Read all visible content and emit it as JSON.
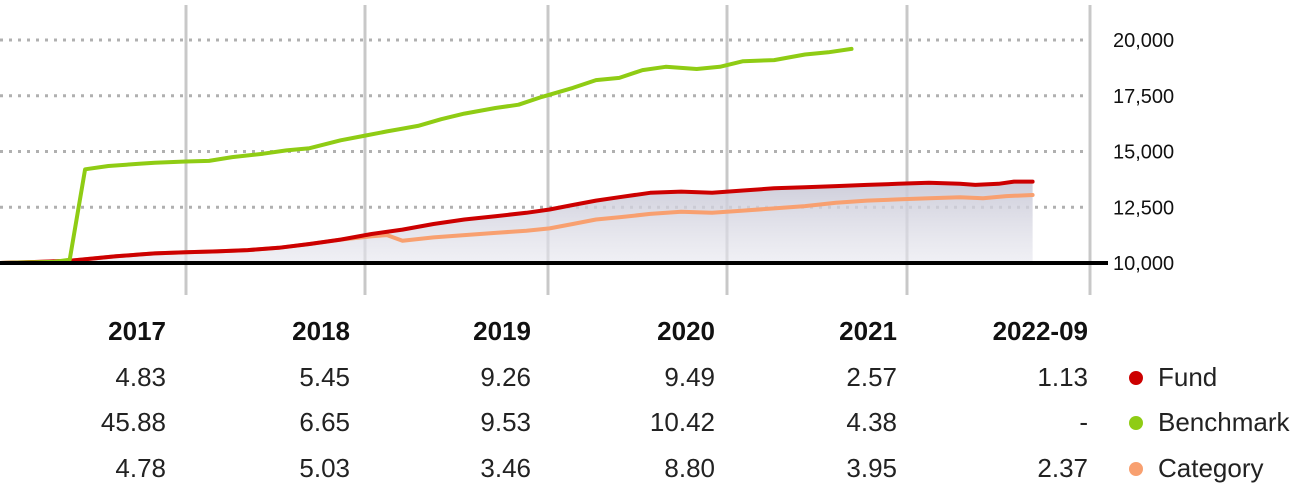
{
  "chart_data": {
    "type": "line",
    "y_ticks": [
      "20,000",
      "17,500",
      "15,000",
      "12,500",
      "10,000"
    ],
    "y_tick_values": [
      20000,
      17500,
      15000,
      12500,
      10000
    ],
    "ylim": [
      8800,
      21500
    ],
    "x_range": [
      2016.0,
      2022.75
    ],
    "year_markers": [
      2016.5,
      2017.5,
      2018.5,
      2019.5,
      2020.5,
      2021.5
    ],
    "grid": "dotted horizontal, solid vertical year separators",
    "series": [
      {
        "name": "Fund",
        "color": "#cc0000",
        "area_fill": true,
        "x": [
          2016.0,
          2016.25,
          2016.45,
          2016.6,
          2016.75,
          2016.9,
          2017.0,
          2017.2,
          2017.4,
          2017.6,
          2017.8,
          2018.0,
          2018.2,
          2018.4,
          2018.6,
          2018.8,
          2019.0,
          2019.2,
          2019.4,
          2019.55,
          2019.7,
          2019.85,
          2020.0,
          2020.2,
          2020.4,
          2020.6,
          2020.8,
          2021.0,
          2021.2,
          2021.4,
          2021.6,
          2021.8,
          2022.0,
          2022.2,
          2022.3,
          2022.45,
          2022.55,
          2022.67
        ],
        "values": [
          10000,
          10050,
          10100,
          10200,
          10300,
          10380,
          10430,
          10480,
          10520,
          10580,
          10680,
          10850,
          11050,
          11300,
          11500,
          11750,
          11950,
          12100,
          12250,
          12400,
          12600,
          12800,
          12950,
          13150,
          13200,
          13150,
          13250,
          13350,
          13400,
          13450,
          13500,
          13550,
          13600,
          13550,
          13500,
          13550,
          13650,
          13650
        ]
      },
      {
        "name": "Benchmark",
        "color": "#8fcc14",
        "area_fill": false,
        "x": [
          2016.0,
          2016.35,
          2016.45,
          2016.55,
          2016.7,
          2016.9,
          2017.0,
          2017.2,
          2017.35,
          2017.5,
          2017.7,
          2017.85,
          2018.0,
          2018.2,
          2018.35,
          2018.5,
          2018.7,
          2018.85,
          2019.0,
          2019.2,
          2019.35,
          2019.5,
          2019.7,
          2019.85,
          2020.0,
          2020.15,
          2020.3,
          2020.5,
          2020.65,
          2020.8,
          2021.0,
          2021.2,
          2021.35,
          2021.5
        ],
        "values": [
          10000,
          10050,
          10150,
          14200,
          14350,
          14450,
          14500,
          14550,
          14580,
          14750,
          14900,
          15050,
          15150,
          15500,
          15700,
          15900,
          16150,
          16450,
          16700,
          16950,
          17100,
          17450,
          17850,
          18200,
          18300,
          18650,
          18800,
          18700,
          18800,
          19050,
          19100,
          19350,
          19450,
          19600
        ]
      },
      {
        "name": "Category",
        "color": "#f8a070",
        "area_fill": false,
        "x": [
          2016.0,
          2016.25,
          2016.45,
          2016.6,
          2016.75,
          2016.9,
          2017.0,
          2017.2,
          2017.4,
          2017.6,
          2017.8,
          2018.0,
          2018.1,
          2018.2,
          2018.4,
          2018.5,
          2018.6,
          2018.8,
          2019.0,
          2019.2,
          2019.4,
          2019.55,
          2019.7,
          2019.85,
          2020.0,
          2020.2,
          2020.4,
          2020.6,
          2020.8,
          2021.0,
          2021.2,
          2021.4,
          2021.6,
          2021.8,
          2022.0,
          2022.2,
          2022.35,
          2022.5,
          2022.67
        ],
        "values": [
          10000,
          10050,
          10100,
          10200,
          10300,
          10380,
          10430,
          10480,
          10520,
          10580,
          10680,
          10850,
          10950,
          11050,
          11200,
          11250,
          11000,
          11150,
          11250,
          11350,
          11450,
          11550,
          11750,
          11950,
          12050,
          12200,
          12300,
          12250,
          12350,
          12450,
          12550,
          12700,
          12800,
          12850,
          12900,
          12950,
          12900,
          13000,
          13050
        ]
      }
    ],
    "table": {
      "columns": [
        "2017",
        "2018",
        "2019",
        "2020",
        "2021",
        "2022-09"
      ],
      "rows": [
        {
          "label": "Fund",
          "color": "#cc0000",
          "values": [
            "4.83",
            "5.45",
            "9.26",
            "9.49",
            "2.57",
            "1.13"
          ]
        },
        {
          "label": "Benchmark",
          "color": "#8fcc14",
          "values": [
            "45.88",
            "6.65",
            "9.53",
            "10.42",
            "4.38",
            "-"
          ]
        },
        {
          "label": "Category",
          "color": "#f8a070",
          "values": [
            "4.78",
            "5.03",
            "3.46",
            "8.80",
            "3.95",
            "2.37"
          ]
        }
      ]
    }
  },
  "colors": {
    "axis": "#000000",
    "grid_dotted": "#b0b0b0",
    "grid_vertical": "#c8c8c8",
    "area_fill": "#e6e6ee"
  }
}
